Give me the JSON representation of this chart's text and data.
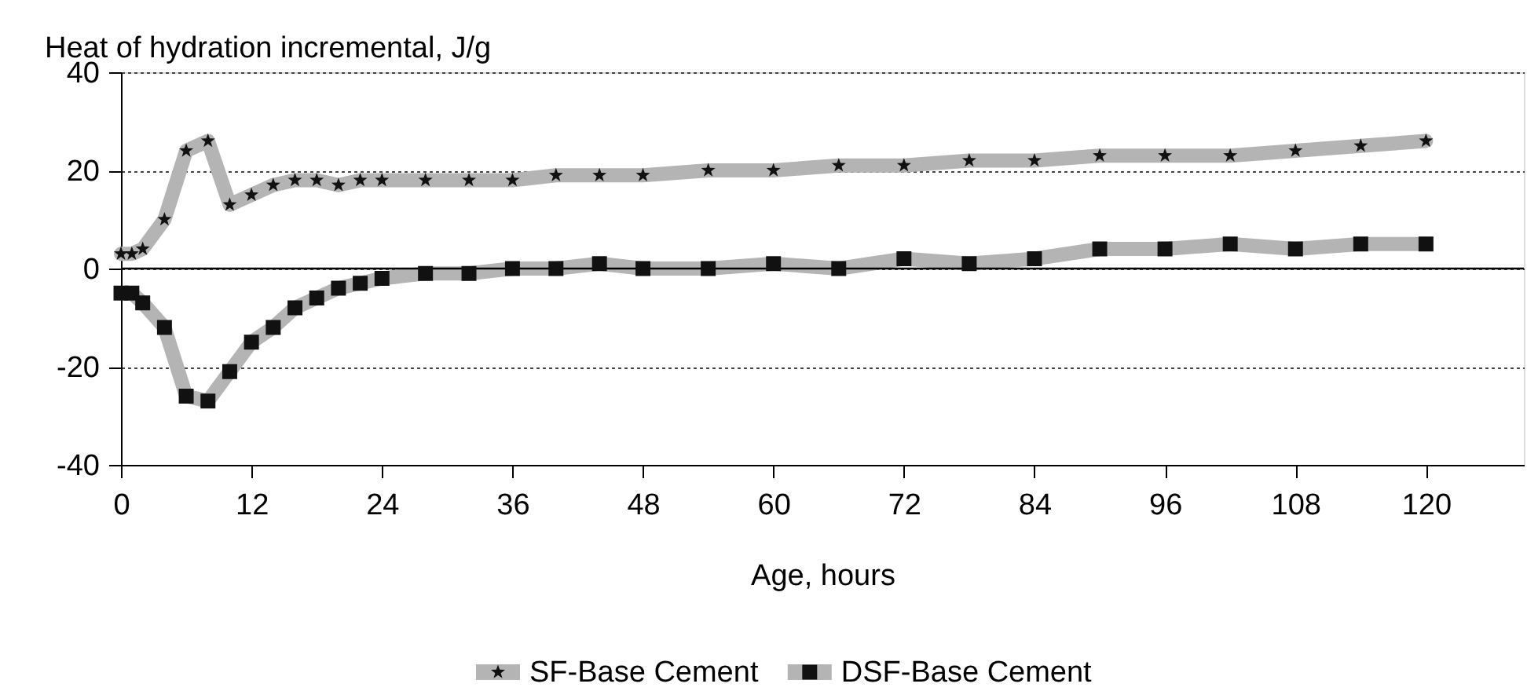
{
  "chart_data": {
    "type": "line",
    "ylabel": "Heat of hydration incremental, J/g",
    "xlabel": "Age, hours",
    "xlim": [
      0,
      129
    ],
    "xticks": [
      0,
      12,
      24,
      36,
      48,
      60,
      72,
      84,
      96,
      108,
      120
    ],
    "ylim": [
      -40,
      40
    ],
    "yticks": [
      -40,
      -20,
      0,
      20,
      40
    ],
    "grid": "y",
    "legend": "bottom",
    "line_style": "solid",
    "ref_lines": [
      {
        "axis": "y",
        "value": 0,
        "color": "#000000",
        "line_style": "solid"
      }
    ],
    "series": [
      {
        "name": "SF-Base Cement",
        "color": "#b4b4b4",
        "marker": "star",
        "x": [
          0,
          1,
          2,
          4,
          6,
          8,
          10,
          12,
          14,
          16,
          18,
          20,
          22,
          24,
          28,
          32,
          36,
          40,
          44,
          48,
          54,
          60,
          66,
          72,
          78,
          84,
          90,
          96,
          102,
          108,
          114,
          120
        ],
        "values": [
          3,
          3,
          4,
          10,
          24,
          26,
          13,
          15,
          17,
          18,
          18,
          17,
          18,
          18,
          18,
          18,
          18,
          19,
          19,
          19,
          20,
          20,
          21,
          21,
          22,
          22,
          23,
          23,
          23,
          24,
          25,
          26
        ]
      },
      {
        "name": "DSF-Base Cement",
        "color": "#b4b4b4",
        "marker": "square",
        "x": [
          0,
          1,
          2,
          4,
          6,
          8,
          10,
          12,
          14,
          16,
          18,
          20,
          22,
          24,
          28,
          32,
          36,
          40,
          44,
          48,
          54,
          60,
          66,
          72,
          78,
          84,
          90,
          96,
          102,
          108,
          114,
          120
        ],
        "values": [
          -5,
          -5,
          -7,
          -12,
          -26,
          -27,
          -21,
          -15,
          -12,
          -8,
          -6,
          -4,
          -3,
          -2,
          -1,
          -1,
          0,
          0,
          1,
          0,
          0,
          1,
          0,
          2,
          1,
          2,
          4,
          4,
          5,
          4,
          5,
          5
        ]
      }
    ]
  }
}
